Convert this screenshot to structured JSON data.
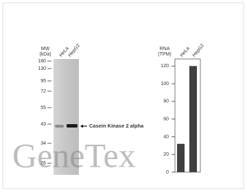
{
  "blot": {
    "mw_label": [
      "MW",
      "(kDa)"
    ],
    "lanes": [
      "HeLa",
      "HepG2"
    ],
    "markers": [
      180,
      130,
      95,
      72,
      55,
      43,
      34,
      26
    ],
    "target": "Casein Kinase 2 alpha"
  },
  "watermark": "GeneTex",
  "chart_data": {
    "type": "bar",
    "ylabel": [
      "RNA",
      "(TPM)"
    ],
    "categories": [
      "HeLa",
      "HepG2"
    ],
    "values": [
      32,
      120
    ],
    "color": "#404040",
    "ylim": [
      0,
      128
    ],
    "yticks": [
      0,
      20,
      40,
      60,
      80,
      100,
      120
    ]
  }
}
